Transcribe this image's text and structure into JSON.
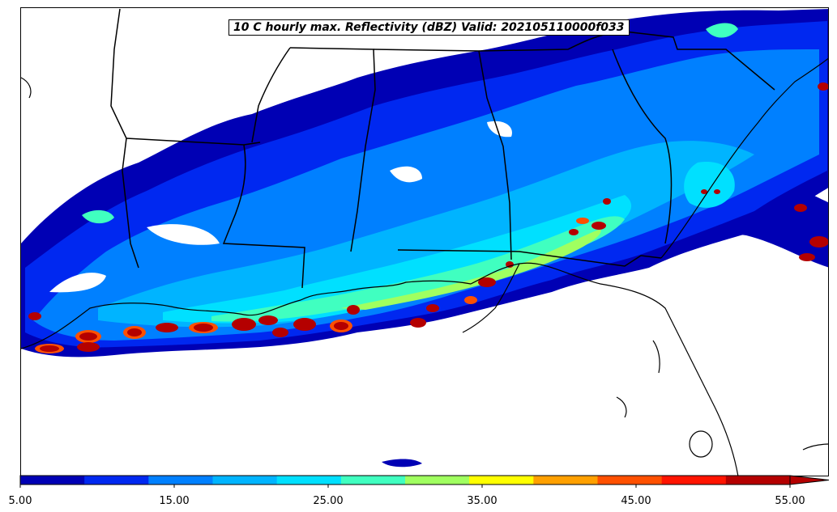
{
  "map": {
    "title": "10 C hourly max. Reflectivity (dBZ) Valid: 202105110000f033"
  },
  "colorbar": {
    "colors": [
      "#0000b4",
      "#0028f0",
      "#0080ff",
      "#00b4ff",
      "#00e0ff",
      "#40ffc0",
      "#a0ff60",
      "#ffff00",
      "#ffa000",
      "#ff5000",
      "#ff1400",
      "#b40000"
    ],
    "extend": "max",
    "tick_labels": [
      "5.00",
      "15.00",
      "25.00",
      "35.00",
      "45.00",
      "55.00"
    ]
  }
}
